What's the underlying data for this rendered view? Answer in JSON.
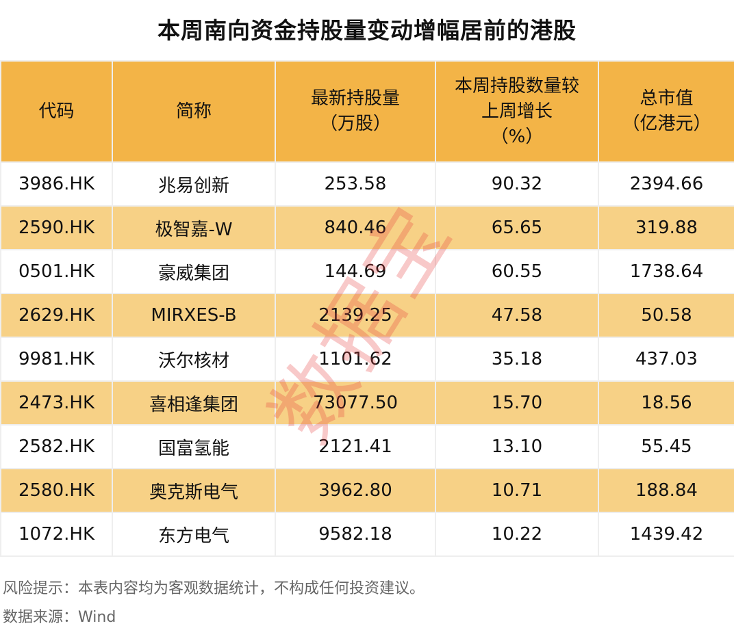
{
  "title": "本周南向资金持股量变动增幅居前的港股",
  "colors": {
    "header_bg": "#F3B447",
    "alt_row_bg": "#F7D186",
    "watermark": "#E63C3C"
  },
  "table": {
    "headers": [
      "代码",
      "简称",
      "最新持股量\n（万股）",
      "本周持股数量较\n上周增长\n（%）",
      "总市值\n（亿港元）"
    ],
    "rows": [
      [
        "3986.HK",
        "兆易创新",
        "253.58",
        "90.32",
        "2394.66"
      ],
      [
        "2590.HK",
        "极智嘉-W",
        "840.46",
        "65.65",
        "319.88"
      ],
      [
        "0501.HK",
        "豪威集团",
        "144.69",
        "60.55",
        "1738.64"
      ],
      [
        "2629.HK",
        "MIRXES-B",
        "2139.25",
        "47.58",
        "50.58"
      ],
      [
        "9981.HK",
        "沃尔核材",
        "1101.62",
        "35.18",
        "437.03"
      ],
      [
        "2473.HK",
        "喜相逢集团",
        "73077.50",
        "15.70",
        "18.56"
      ],
      [
        "2582.HK",
        "国富氢能",
        "2121.41",
        "13.10",
        "55.45"
      ],
      [
        "2580.HK",
        "奥克斯电气",
        "3962.80",
        "10.71",
        "188.84"
      ],
      [
        "1072.HK",
        "东方电气",
        "9582.18",
        "10.22",
        "1439.42"
      ]
    ]
  },
  "footer": {
    "risk": "风险提示：本表内容均为客观数据统计，不构成任何投资建议。",
    "source": "数据来源：Wind"
  },
  "watermark": "数据宝"
}
